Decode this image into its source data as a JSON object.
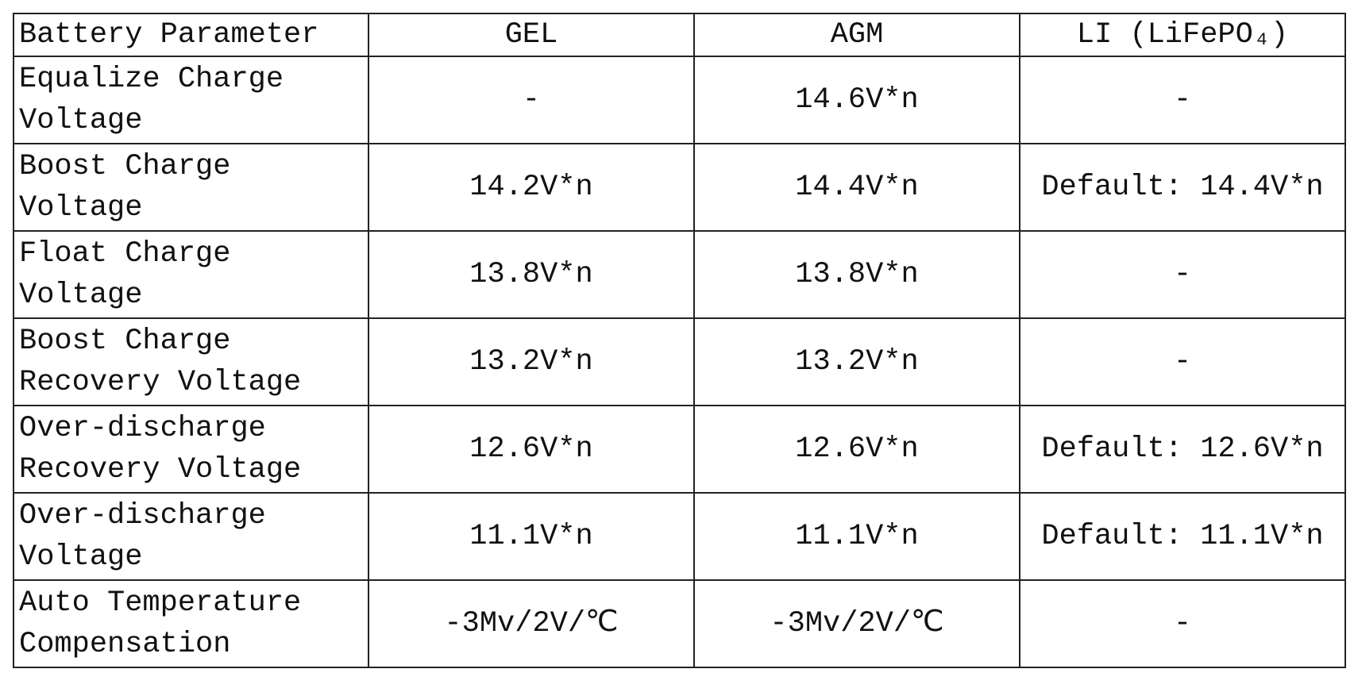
{
  "table": {
    "header": [
      "Battery Parameter",
      "GEL",
      "AGM",
      "LI (LiFePO₄)"
    ],
    "rows": [
      [
        "Equalize Charge Voltage",
        "-",
        "14.6V*n",
        "-"
      ],
      [
        "Boost Charge Voltage",
        "14.2V*n",
        "14.4V*n",
        "Default: 14.4V*n"
      ],
      [
        "Float Charge Voltage",
        "13.8V*n",
        "13.8V*n",
        "-"
      ],
      [
        "Boost Charge Recovery Voltage",
        "13.2V*n",
        "13.2V*n",
        "-"
      ],
      [
        "Over-discharge Recovery Voltage",
        "12.6V*n",
        "12.6V*n",
        "Default: 12.6V*n"
      ],
      [
        "Over-discharge Voltage",
        "11.1V*n",
        "11.1V*n",
        "Default: 11.1V*n"
      ],
      [
        "Auto Temperature Compensation",
        "-3Mv/2V/℃",
        "-3Mv/2V/℃",
        "-"
      ]
    ]
  }
}
